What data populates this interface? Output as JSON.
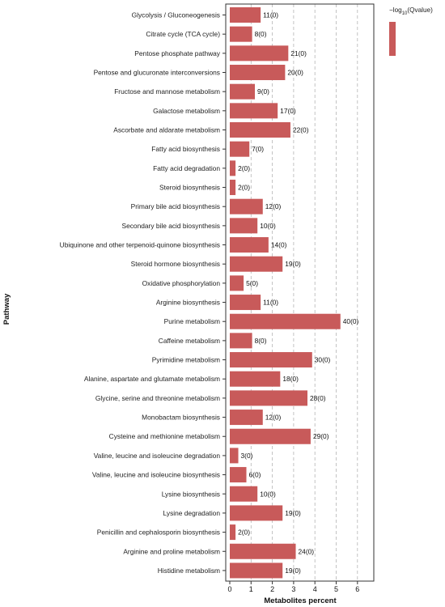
{
  "chart_data": {
    "type": "bar",
    "orientation": "horizontal",
    "xlabel": "Metabolites percent",
    "ylabel": "Pathway",
    "xlim": [
      0,
      6.5
    ],
    "xticks": [
      "0",
      "1",
      "2",
      "3",
      "4",
      "5",
      "6"
    ],
    "grid": "vertical dashed",
    "legend": {
      "title_prefix": "−log",
      "title_sub": "10",
      "title_suffix": "(Qvalue)",
      "position": "top-right",
      "color": "#c85a5a"
    },
    "bar_color": "#c85a5a",
    "categories": [
      "Glycolysis / Gluconeogenesis",
      "Citrate cycle (TCA cycle)",
      "Pentose phosphate pathway",
      "Pentose and glucuronate interconversions",
      "Fructose and mannose metabolism",
      "Galactose metabolism",
      "Ascorbate and aldarate metabolism",
      "Fatty acid biosynthesis",
      "Fatty acid degradation",
      "Steroid biosynthesis",
      "Primary bile acid biosynthesis",
      "Secondary bile acid biosynthesis",
      "Ubiquinone and other terpenoid-quinone biosynthesis",
      "Steroid hormone biosynthesis",
      "Oxidative phosphorylation",
      "Arginine biosynthesis",
      "Purine metabolism",
      "Caffeine metabolism",
      "Pyrimidine metabolism",
      "Alanine, aspartate and glutamate metabolism",
      "Glycine, serine and threonine metabolism",
      "Monobactam biosynthesis",
      "Cysteine and methionine metabolism",
      "Valine, leucine and isoleucine degradation",
      "Valine, leucine and isoleucine biosynthesis",
      "Lysine biosynthesis",
      "Lysine degradation",
      "Penicillin and cephalosporin biosynthesis",
      "Arginine and proline metabolism",
      "Histidine metabolism"
    ],
    "values": [
      1.45,
      1.05,
      2.75,
      2.6,
      1.18,
      2.25,
      2.85,
      0.92,
      0.27,
      0.27,
      1.55,
      1.3,
      1.82,
      2.48,
      0.65,
      1.45,
      5.2,
      1.05,
      3.87,
      2.37,
      3.65,
      1.55,
      3.8,
      0.4,
      0.78,
      1.3,
      2.48,
      0.27,
      3.1,
      2.48
    ],
    "data_labels": [
      "11(0)",
      "8(0)",
      "21(0)",
      "20(0)",
      "9(0)",
      "17(0)",
      "22(0)",
      "7(0)",
      "2(0)",
      "2(0)",
      "12(0)",
      "10(0)",
      "14(0)",
      "19(0)",
      "5(0)",
      "11(0)",
      "40(0)",
      "8(0)",
      "30(0)",
      "18(0)",
      "28(0)",
      "12(0)",
      "29(0)",
      "3(0)",
      "6(0)",
      "10(0)",
      "19(0)",
      "2(0)",
      "24(0)",
      "19(0)"
    ]
  }
}
